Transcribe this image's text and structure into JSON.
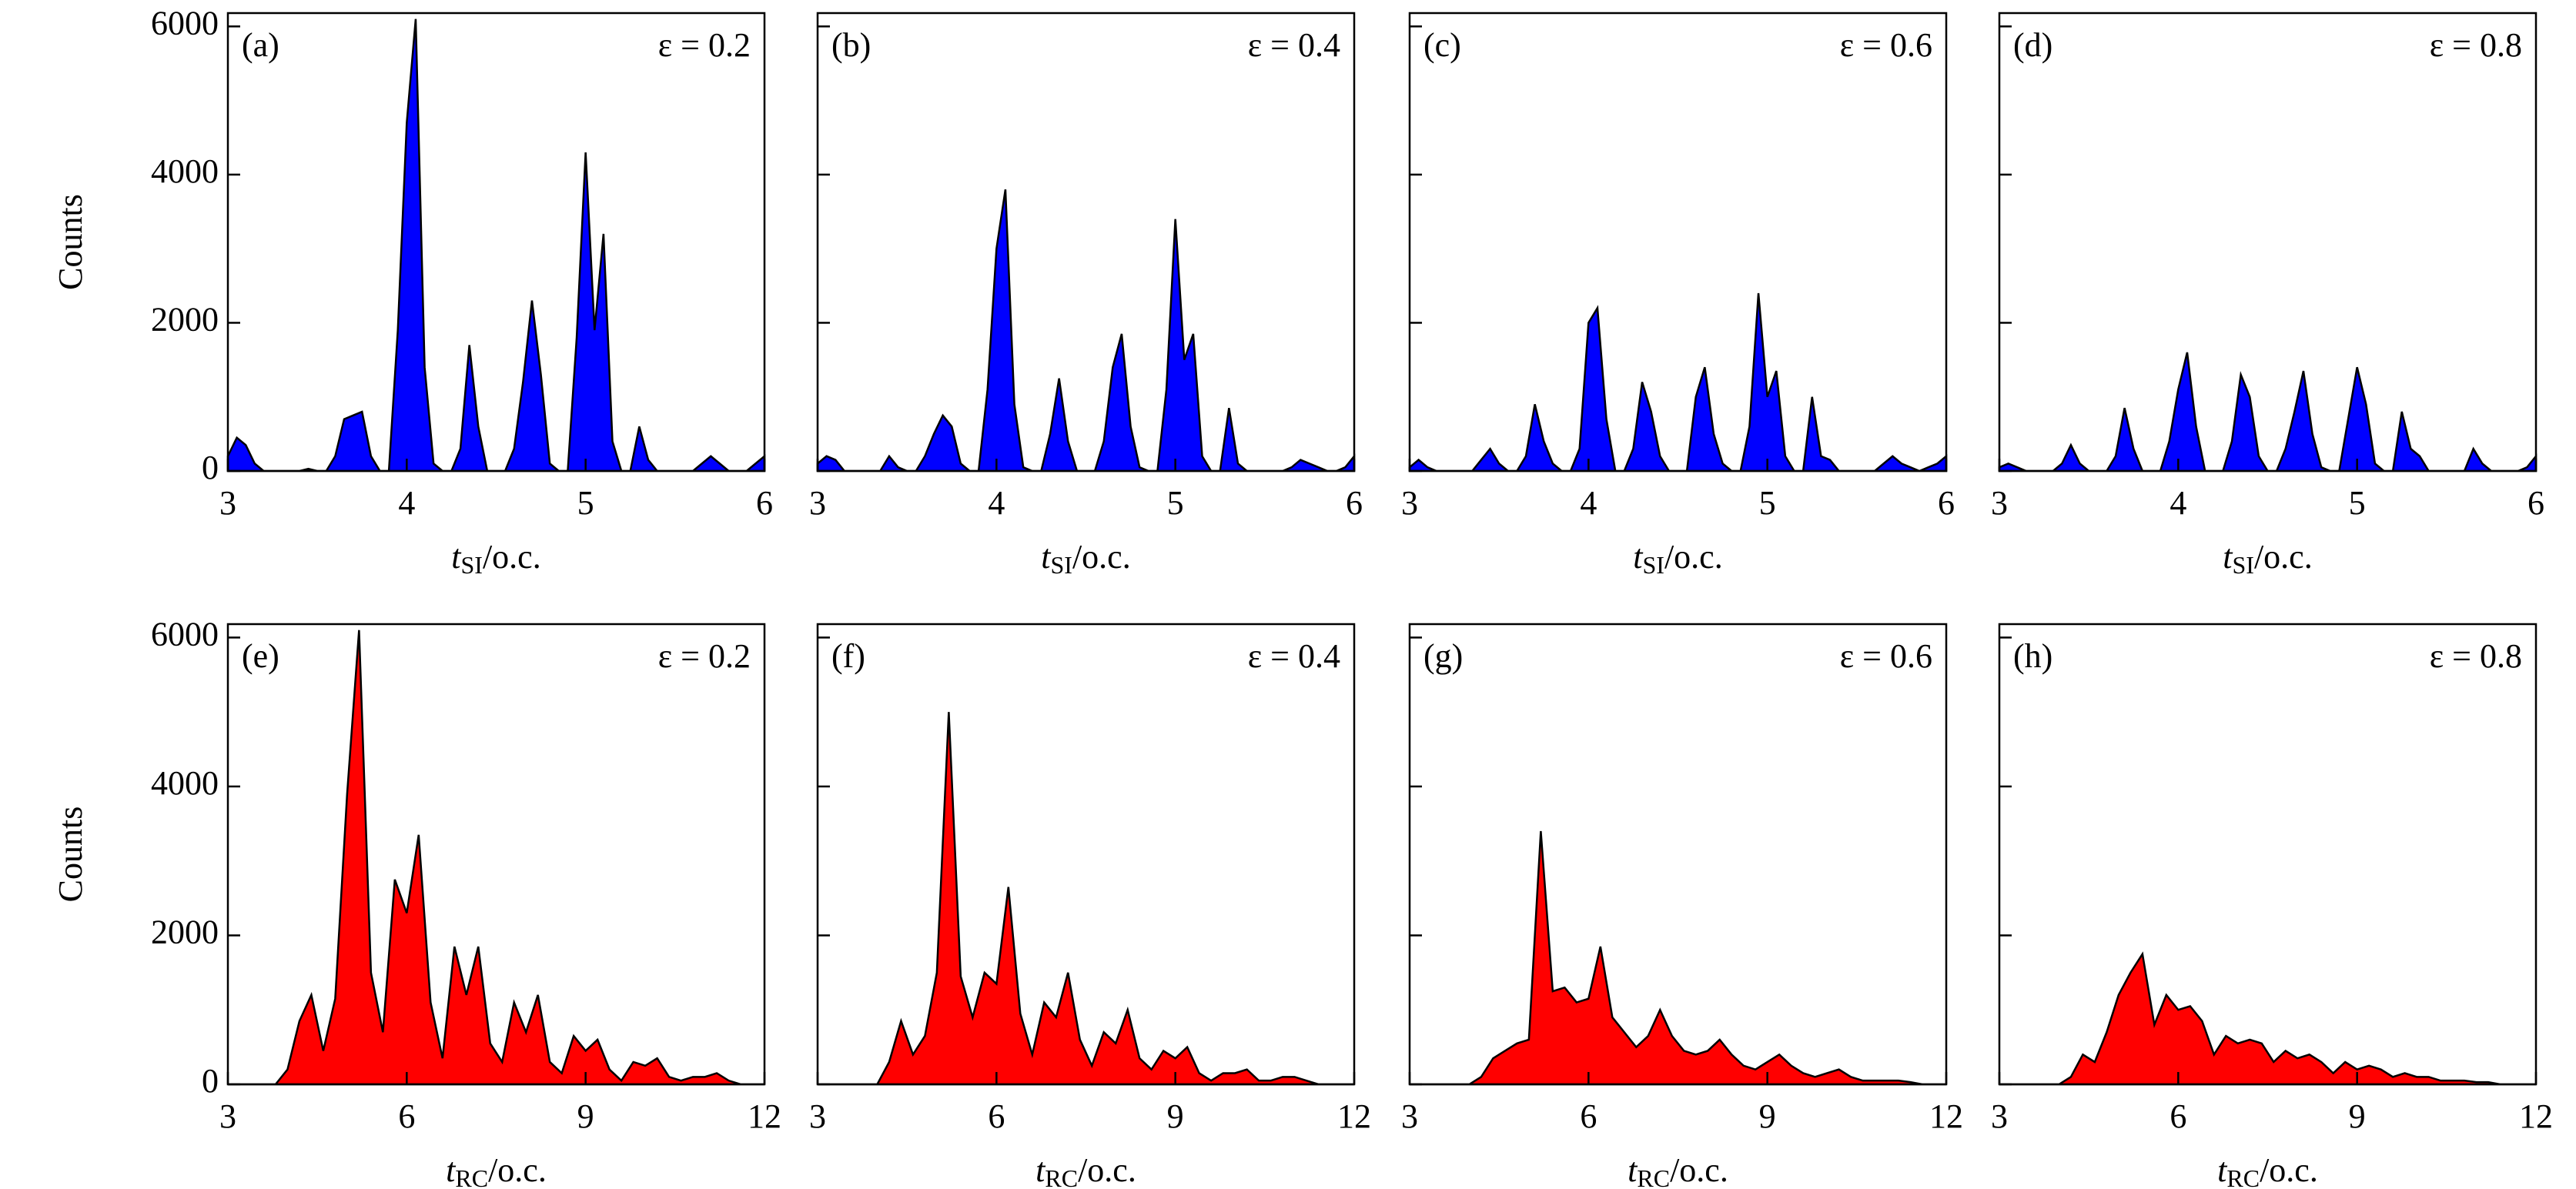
{
  "chart_data": [
    {
      "type": "area",
      "label": "(a)",
      "annotation": "ε = 0.2",
      "ylabel": "Counts",
      "ytick_labels": true,
      "xlabel": {
        "symbol": "t",
        "subscript": "SI",
        "unit": "/o.c."
      },
      "color": "#0000ff",
      "x": [
        3,
        3.05,
        3.1,
        3.15,
        3.2,
        3.25,
        3.3,
        3.35,
        3.4,
        3.45,
        3.5,
        3.55,
        3.6,
        3.65,
        3.7,
        3.75,
        3.8,
        3.85,
        3.9,
        3.95,
        4,
        4.05,
        4.1,
        4.15,
        4.2,
        4.25,
        4.3,
        4.35,
        4.4,
        4.45,
        4.5,
        4.55,
        4.6,
        4.65,
        4.7,
        4.75,
        4.8,
        4.85,
        4.9,
        4.95,
        5,
        5.05,
        5.1,
        5.15,
        5.2,
        5.25,
        5.3,
        5.35,
        5.4,
        5.45,
        5.5,
        5.55,
        5.6,
        5.65,
        5.7,
        5.75,
        5.8,
        5.85,
        5.9,
        5.95,
        6
      ],
      "values": [
        200,
        450,
        350,
        100,
        0,
        0,
        0,
        0,
        0,
        30,
        0,
        0,
        200,
        700,
        750,
        800,
        200,
        0,
        0,
        1900,
        4700,
        6100,
        1400,
        100,
        0,
        0,
        300,
        1700,
        600,
        0,
        0,
        0,
        300,
        1200,
        2300,
        1300,
        100,
        0,
        0,
        1800,
        4300,
        1900,
        3200,
        400,
        0,
        0,
        600,
        150,
        0,
        0,
        0,
        0,
        0,
        100,
        200,
        100,
        0,
        0,
        0,
        100,
        200
      ],
      "xlim": [
        3,
        6
      ],
      "xticks": [
        3,
        4,
        5,
        6
      ],
      "ylim": [
        0,
        6180
      ],
      "yticks": [
        0,
        2000,
        4000,
        6000
      ]
    },
    {
      "type": "area",
      "label": "(b)",
      "annotation": "ε = 0.4",
      "ytick_labels": false,
      "xlabel": {
        "symbol": "t",
        "subscript": "SI",
        "unit": "/o.c."
      },
      "color": "#0000ff",
      "x": [
        3,
        3.05,
        3.1,
        3.15,
        3.2,
        3.25,
        3.3,
        3.35,
        3.4,
        3.45,
        3.5,
        3.55,
        3.6,
        3.65,
        3.7,
        3.75,
        3.8,
        3.85,
        3.9,
        3.95,
        4,
        4.05,
        4.1,
        4.15,
        4.2,
        4.25,
        4.3,
        4.35,
        4.4,
        4.45,
        4.5,
        4.55,
        4.6,
        4.65,
        4.7,
        4.75,
        4.8,
        4.85,
        4.9,
        4.95,
        5,
        5.05,
        5.1,
        5.15,
        5.2,
        5.25,
        5.3,
        5.35,
        5.4,
        5.45,
        5.5,
        5.55,
        5.6,
        5.65,
        5.7,
        5.75,
        5.8,
        5.85,
        5.9,
        5.95,
        6
      ],
      "values": [
        100,
        200,
        150,
        0,
        0,
        0,
        0,
        0,
        200,
        50,
        0,
        0,
        200,
        500,
        750,
        600,
        100,
        0,
        0,
        1100,
        3000,
        3800,
        900,
        50,
        0,
        0,
        500,
        1250,
        400,
        0,
        0,
        0,
        400,
        1400,
        1850,
        600,
        50,
        0,
        0,
        1100,
        3400,
        1500,
        1850,
        200,
        0,
        0,
        850,
        100,
        0,
        0,
        0,
        0,
        0,
        50,
        150,
        100,
        50,
        0,
        0,
        50,
        200
      ],
      "xlim": [
        3,
        6
      ],
      "xticks": [
        3,
        4,
        5,
        6
      ],
      "ylim": [
        0,
        6180
      ],
      "yticks": [
        0,
        2000,
        4000,
        6000
      ]
    },
    {
      "type": "area",
      "label": "(c)",
      "annotation": "ε = 0.6",
      "ytick_labels": false,
      "xlabel": {
        "symbol": "t",
        "subscript": "SI",
        "unit": "/o.c."
      },
      "color": "#0000ff",
      "x": [
        3,
        3.05,
        3.1,
        3.15,
        3.2,
        3.25,
        3.3,
        3.35,
        3.4,
        3.45,
        3.5,
        3.55,
        3.6,
        3.65,
        3.7,
        3.75,
        3.8,
        3.85,
        3.9,
        3.95,
        4,
        4.05,
        4.1,
        4.15,
        4.2,
        4.25,
        4.3,
        4.35,
        4.4,
        4.45,
        4.5,
        4.55,
        4.6,
        4.65,
        4.7,
        4.75,
        4.8,
        4.85,
        4.9,
        4.95,
        5,
        5.05,
        5.1,
        5.15,
        5.2,
        5.25,
        5.3,
        5.35,
        5.4,
        5.45,
        5.5,
        5.55,
        5.6,
        5.65,
        5.7,
        5.75,
        5.8,
        5.85,
        5.9,
        5.95,
        6
      ],
      "values": [
        50,
        150,
        50,
        0,
        0,
        0,
        0,
        0,
        150,
        300,
        100,
        0,
        0,
        200,
        900,
        400,
        100,
        0,
        0,
        300,
        2000,
        2200,
        700,
        0,
        0,
        300,
        1200,
        800,
        200,
        0,
        0,
        0,
        1000,
        1400,
        500,
        100,
        0,
        0,
        600,
        2400,
        1000,
        1350,
        200,
        0,
        0,
        1000,
        200,
        150,
        0,
        0,
        0,
        0,
        0,
        100,
        200,
        100,
        50,
        0,
        50,
        100,
        200
      ],
      "xlim": [
        3,
        6
      ],
      "xticks": [
        3,
        4,
        5,
        6
      ],
      "ylim": [
        0,
        6180
      ],
      "yticks": [
        0,
        2000,
        4000,
        6000
      ]
    },
    {
      "type": "area",
      "label": "(d)",
      "annotation": "ε = 0.8",
      "ytick_labels": false,
      "xlabel": {
        "symbol": "t",
        "subscript": "SI",
        "unit": "/o.c."
      },
      "color": "#0000ff",
      "x": [
        3,
        3.05,
        3.1,
        3.15,
        3.2,
        3.25,
        3.3,
        3.35,
        3.4,
        3.45,
        3.5,
        3.55,
        3.6,
        3.65,
        3.7,
        3.75,
        3.8,
        3.85,
        3.9,
        3.95,
        4,
        4.05,
        4.1,
        4.15,
        4.2,
        4.25,
        4.3,
        4.35,
        4.4,
        4.45,
        4.5,
        4.55,
        4.6,
        4.65,
        4.7,
        4.75,
        4.8,
        4.85,
        4.9,
        4.95,
        5,
        5.05,
        5.1,
        5.15,
        5.2,
        5.25,
        5.3,
        5.35,
        5.4,
        5.45,
        5.5,
        5.55,
        5.6,
        5.65,
        5.7,
        5.75,
        5.8,
        5.85,
        5.9,
        5.95,
        6
      ],
      "values": [
        50,
        100,
        50,
        0,
        0,
        0,
        0,
        100,
        350,
        100,
        0,
        0,
        0,
        200,
        850,
        300,
        0,
        0,
        0,
        400,
        1100,
        1600,
        600,
        0,
        0,
        0,
        400,
        1300,
        1000,
        200,
        0,
        0,
        300,
        800,
        1350,
        500,
        50,
        0,
        0,
        700,
        1400,
        900,
        100,
        0,
        0,
        800,
        300,
        200,
        0,
        0,
        0,
        0,
        0,
        300,
        100,
        0,
        0,
        0,
        0,
        50,
        200
      ],
      "xlim": [
        3,
        6
      ],
      "xticks": [
        3,
        4,
        5,
        6
      ],
      "ylim": [
        0,
        6180
      ],
      "yticks": [
        0,
        2000,
        4000,
        6000
      ]
    },
    {
      "type": "area",
      "label": "(e)",
      "annotation": "ε = 0.2",
      "ylabel": "Counts",
      "ytick_labels": true,
      "xlabel": {
        "symbol": "t",
        "subscript": "RC",
        "unit": "/o.c."
      },
      "color": "#ff0000",
      "x": [
        3,
        3.2,
        3.4,
        3.6,
        3.8,
        4,
        4.2,
        4.4,
        4.6,
        4.8,
        5,
        5.2,
        5.4,
        5.6,
        5.8,
        6,
        6.2,
        6.4,
        6.6,
        6.8,
        7,
        7.2,
        7.4,
        7.6,
        7.8,
        8,
        8.2,
        8.4,
        8.6,
        8.8,
        9,
        9.2,
        9.4,
        9.6,
        9.8,
        10,
        10.2,
        10.4,
        10.6,
        10.8,
        11,
        11.2,
        11.4,
        11.6,
        11.8,
        12
      ],
      "values": [
        0,
        0,
        0,
        0,
        0,
        200,
        850,
        1200,
        450,
        1150,
        3900,
        6100,
        1500,
        700,
        2750,
        2300,
        3350,
        1100,
        350,
        1850,
        1200,
        1850,
        550,
        300,
        1100,
        700,
        1200,
        300,
        150,
        650,
        450,
        600,
        200,
        50,
        300,
        250,
        350,
        100,
        50,
        100,
        100,
        150,
        50,
        0,
        0,
        0
      ],
      "xlim": [
        3,
        12
      ],
      "xticks": [
        3,
        6,
        9,
        12
      ],
      "ylim": [
        0,
        6180
      ],
      "yticks": [
        0,
        2000,
        4000,
        6000
      ]
    },
    {
      "type": "area",
      "label": "(f)",
      "annotation": "ε = 0.4",
      "ytick_labels": false,
      "xlabel": {
        "symbol": "t",
        "subscript": "RC",
        "unit": "/o.c."
      },
      "color": "#ff0000",
      "x": [
        3,
        3.2,
        3.4,
        3.6,
        3.8,
        4,
        4.2,
        4.4,
        4.6,
        4.8,
        5,
        5.2,
        5.4,
        5.6,
        5.8,
        6,
        6.2,
        6.4,
        6.6,
        6.8,
        7,
        7.2,
        7.4,
        7.6,
        7.8,
        8,
        8.2,
        8.4,
        8.6,
        8.8,
        9,
        9.2,
        9.4,
        9.6,
        9.8,
        10,
        10.2,
        10.4,
        10.6,
        10.8,
        11,
        11.2,
        11.4,
        11.6,
        11.8,
        12
      ],
      "values": [
        0,
        0,
        0,
        0,
        0,
        0,
        300,
        850,
        400,
        650,
        1500,
        5000,
        1450,
        900,
        1500,
        1350,
        2650,
        950,
        400,
        1100,
        900,
        1500,
        600,
        250,
        700,
        550,
        1000,
        350,
        200,
        450,
        350,
        500,
        150,
        50,
        150,
        150,
        200,
        50,
        50,
        100,
        100,
        50,
        0,
        0,
        0,
        0
      ],
      "xlim": [
        3,
        12
      ],
      "xticks": [
        3,
        6,
        9,
        12
      ],
      "ylim": [
        0,
        6180
      ],
      "yticks": [
        0,
        2000,
        4000,
        6000
      ]
    },
    {
      "type": "area",
      "label": "(g)",
      "annotation": "ε = 0.6",
      "ytick_labels": false,
      "xlabel": {
        "symbol": "t",
        "subscript": "RC",
        "unit": "/o.c."
      },
      "color": "#ff0000",
      "x": [
        3,
        3.2,
        3.4,
        3.6,
        3.8,
        4,
        4.2,
        4.4,
        4.6,
        4.8,
        5,
        5.2,
        5.4,
        5.6,
        5.8,
        6,
        6.2,
        6.4,
        6.6,
        6.8,
        7,
        7.2,
        7.4,
        7.6,
        7.8,
        8,
        8.2,
        8.4,
        8.6,
        8.8,
        9,
        9.2,
        9.4,
        9.6,
        9.8,
        10,
        10.2,
        10.4,
        10.6,
        10.8,
        11,
        11.2,
        11.4,
        11.6,
        11.8,
        12
      ],
      "values": [
        0,
        0,
        0,
        0,
        0,
        0,
        100,
        350,
        450,
        550,
        600,
        3400,
        1250,
        1300,
        1100,
        1150,
        1850,
        900,
        700,
        500,
        650,
        1000,
        650,
        450,
        400,
        450,
        600,
        400,
        250,
        200,
        300,
        400,
        250,
        150,
        100,
        150,
        200,
        100,
        50,
        50,
        50,
        50,
        30,
        0,
        0,
        0
      ],
      "xlim": [
        3,
        12
      ],
      "xticks": [
        3,
        6,
        9,
        12
      ],
      "ylim": [
        0,
        6180
      ],
      "yticks": [
        0,
        2000,
        4000,
        6000
      ]
    },
    {
      "type": "area",
      "label": "(h)",
      "annotation": "ε = 0.8",
      "ytick_labels": false,
      "xlabel": {
        "symbol": "t",
        "subscript": "RC",
        "unit": "/o.c."
      },
      "color": "#ff0000",
      "x": [
        3,
        3.2,
        3.4,
        3.6,
        3.8,
        4,
        4.2,
        4.4,
        4.6,
        4.8,
        5,
        5.2,
        5.4,
        5.6,
        5.8,
        6,
        6.2,
        6.4,
        6.6,
        6.8,
        7,
        7.2,
        7.4,
        7.6,
        7.8,
        8,
        8.2,
        8.4,
        8.6,
        8.8,
        9,
        9.2,
        9.4,
        9.6,
        9.8,
        10,
        10.2,
        10.4,
        10.6,
        10.8,
        11,
        11.2,
        11.4,
        11.6,
        11.8,
        12
      ],
      "values": [
        0,
        0,
        0,
        0,
        0,
        0,
        100,
        400,
        300,
        700,
        1200,
        1500,
        1750,
        800,
        1200,
        1000,
        1050,
        850,
        400,
        650,
        550,
        600,
        550,
        300,
        450,
        350,
        400,
        300,
        150,
        300,
        200,
        250,
        200,
        100,
        150,
        100,
        100,
        50,
        50,
        50,
        30,
        30,
        0,
        0,
        0,
        0
      ],
      "xlim": [
        3,
        12
      ],
      "xticks": [
        3,
        6,
        9,
        12
      ],
      "ylim": [
        0,
        6180
      ],
      "yticks": [
        0,
        2000,
        4000,
        6000
      ]
    }
  ]
}
